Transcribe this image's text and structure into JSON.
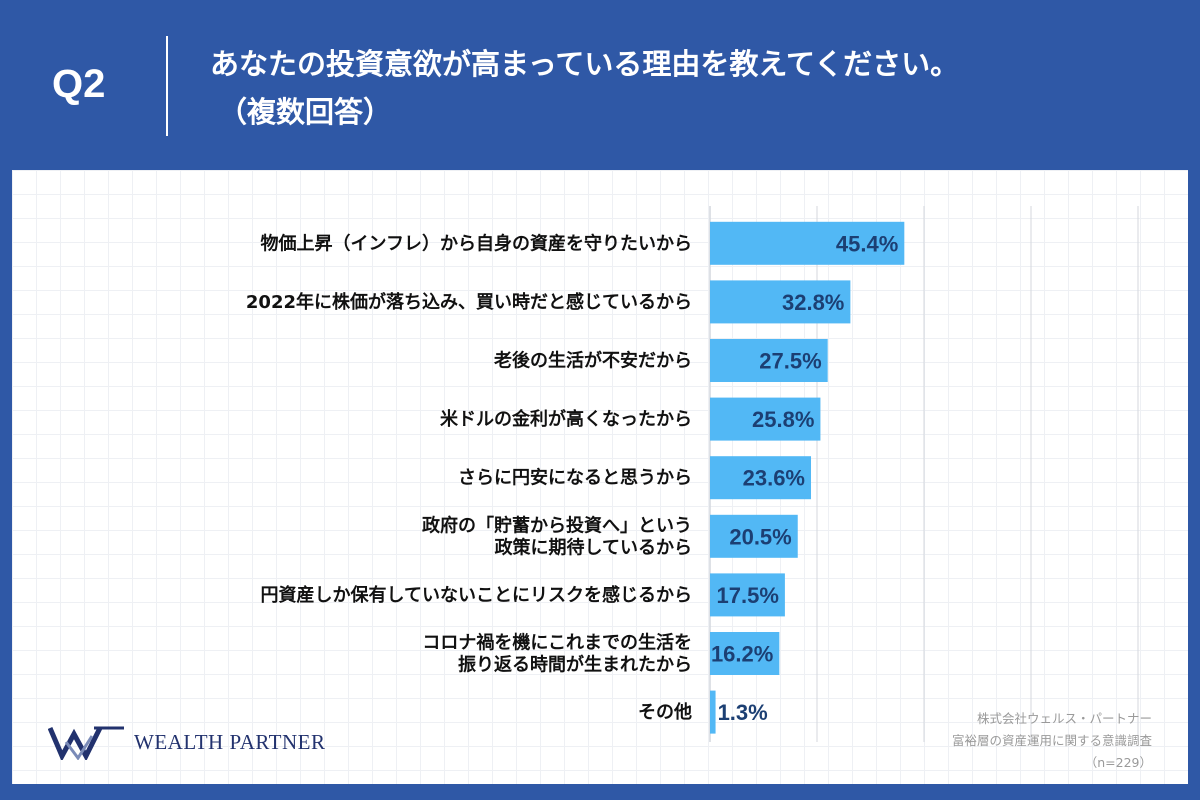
{
  "header": {
    "q_number": "Q2",
    "title": "あなたの投資意欲が高まっている理由を教えてください。",
    "subtitle": "（複数回答）"
  },
  "brand": {
    "logo_text": "Wealth Partner"
  },
  "source": {
    "company": "株式会社ウェルス・パートナー",
    "survey": "富裕層の資産運用に関する意識調査",
    "sample": "（n=229）"
  },
  "colors": {
    "header_bg": "#2f58a6",
    "bar": "#52b8f5",
    "value_text": "#1c3f73",
    "logo": "#22326e"
  },
  "chart_data": {
    "type": "bar",
    "orientation": "horizontal",
    "unit": "%",
    "xlim": [
      0,
      100
    ],
    "categories": [
      [
        "物価上昇（インフレ）から自身の資産を守りたいから"
      ],
      [
        "2022年に株価が落ち込み、買い時だと感じているから"
      ],
      [
        "老後の生活が不安だから"
      ],
      [
        "米ドルの金利が高くなったから"
      ],
      [
        "さらに円安になると思うから"
      ],
      [
        "政府の「貯蓄から投資へ」という",
        "政策に期待しているから"
      ],
      [
        "円資産しか保有していないことにリスクを感じるから"
      ],
      [
        "コロナ禍を機にこれまでの生活を",
        "振り返る時間が生まれたから"
      ],
      [
        "その他"
      ]
    ],
    "values": [
      45.4,
      32.8,
      27.5,
      25.8,
      23.6,
      20.5,
      17.5,
      16.2,
      1.3
    ],
    "value_labels": [
      "45.4%",
      "32.8%",
      "27.5%",
      "25.8%",
      "23.6%",
      "20.5%",
      "17.5%",
      "16.2%",
      "1.3%"
    ],
    "grid": true
  }
}
